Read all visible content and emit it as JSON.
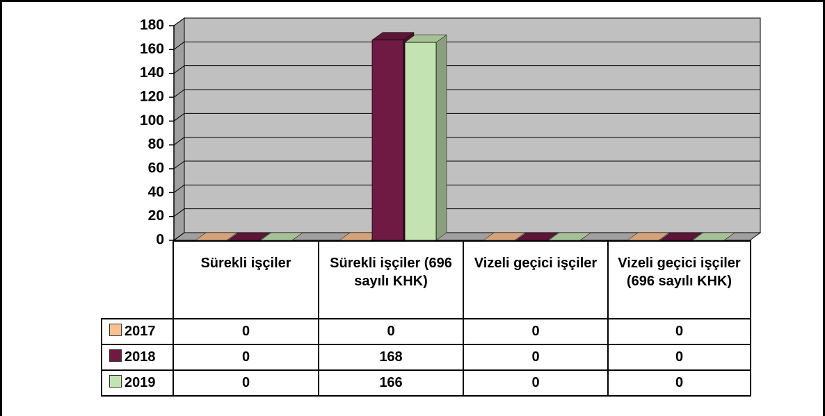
{
  "chart_data": {
    "type": "bar",
    "categories": [
      "Sürekli işçiler",
      "Sürekli işçiler (696 sayılı KHK)",
      "Vizeli geçici işçiler",
      "Vizeli geçici işçiler (696 sayılı KHK)"
    ],
    "series": [
      {
        "name": "2017",
        "color": "#fac090",
        "values": [
          0,
          0,
          0,
          0
        ]
      },
      {
        "name": "2018",
        "color": "#6e1a42",
        "values": [
          0,
          168,
          0,
          0
        ]
      },
      {
        "name": "2019",
        "color": "#c4e3b2",
        "values": [
          0,
          166,
          0,
          0
        ]
      }
    ],
    "ylim": [
      0,
      180
    ],
    "yticks": [
      0,
      20,
      40,
      60,
      80,
      100,
      120,
      140,
      160,
      180
    ],
    "grid": true
  }
}
